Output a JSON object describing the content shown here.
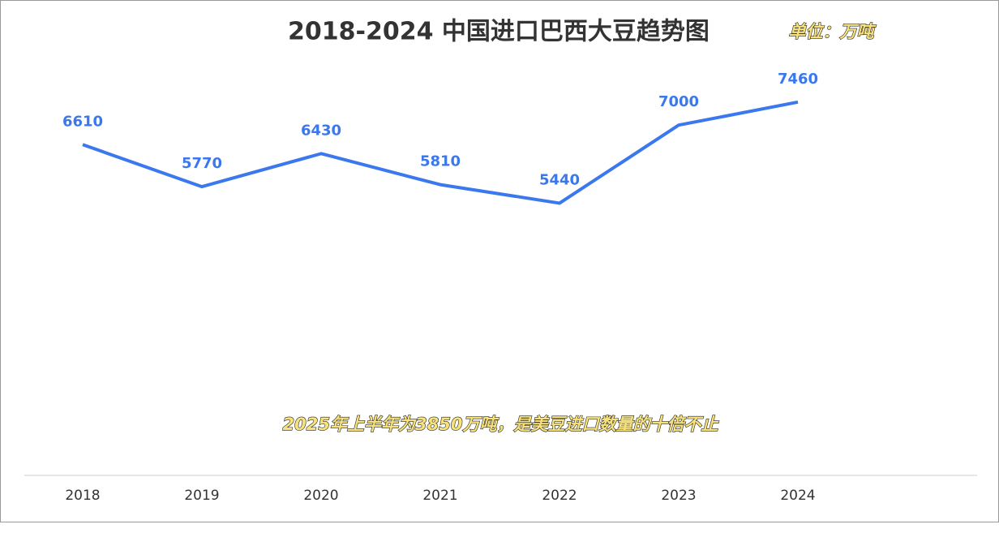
{
  "chart_data": {
    "type": "line",
    "title": "2018-2024 中国进口巴西大豆趋势图",
    "unit": "单位：万吨",
    "annotation": "2025年上半年为3850万吨，是美豆进口数量的十倍不止",
    "categories": [
      "2018",
      "2019",
      "2020",
      "2021",
      "2022",
      "2023",
      "2024"
    ],
    "values": [
      6610,
      5770,
      6430,
      5810,
      5440,
      7000,
      7460
    ],
    "color": "#3b78ee",
    "ylim": [
      0,
      9500
    ]
  }
}
